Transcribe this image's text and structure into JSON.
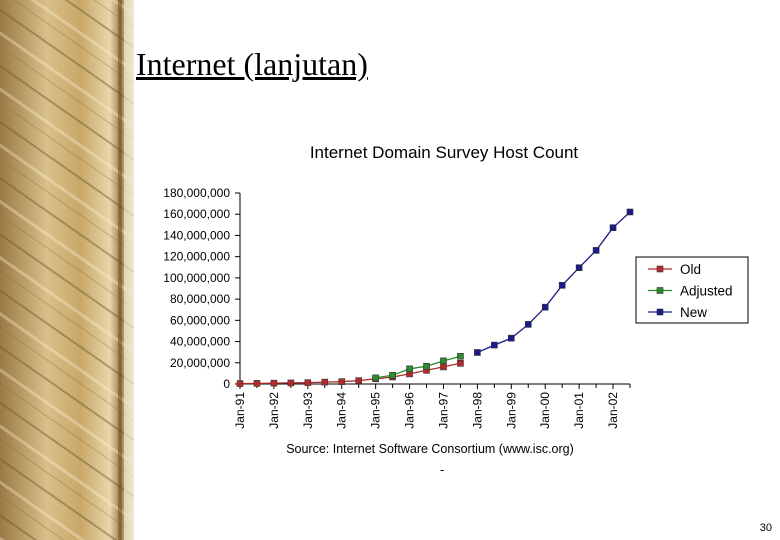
{
  "slide": {
    "title": "Internet (lanjutan)",
    "page_number": "30",
    "dash": "-"
  },
  "colors": {
    "old": "#b22a2a",
    "adjusted": "#2e8a2e",
    "new": "#1a1a8a"
  },
  "chart_data": {
    "type": "line",
    "title": "Internet Domain Survey Host Count",
    "source": "Source: Internet Software Consortium (www.isc.org)",
    "ylim": [
      0,
      180000000
    ],
    "yticks": [
      "180,000,000",
      "160,000,000",
      "140,000,000",
      "120,000,000",
      "100,000,000",
      "80,000,000",
      "60,000,000",
      "40,000,000",
      "20,000,000",
      "0"
    ],
    "ytick_values": [
      180000000,
      160000000,
      140000000,
      120000000,
      100000000,
      80000000,
      60000000,
      40000000,
      20000000,
      0
    ],
    "xticks": [
      "Jan-91",
      "Jan-92",
      "Jan-93",
      "Jan-94",
      "Jan-95",
      "Jan-96",
      "Jan-97",
      "Jan-98",
      "Jan-99",
      "Jan-00",
      "Jan-01",
      "Jan-02"
    ],
    "xtick_years": [
      1991,
      1992,
      1993,
      1994,
      1995,
      1996,
      1997,
      1998,
      1999,
      2000,
      2001,
      2002
    ],
    "xlim": [
      1991,
      2002.5
    ],
    "legend_position": "right",
    "series": [
      {
        "name": "Old",
        "color": "#b22a2a",
        "points": [
          {
            "x": 1991.0,
            "y": 400000
          },
          {
            "x": 1991.5,
            "y": 600000
          },
          {
            "x": 1992.0,
            "y": 800000
          },
          {
            "x": 1992.5,
            "y": 1000000
          },
          {
            "x": 1993.0,
            "y": 1300000
          },
          {
            "x": 1993.5,
            "y": 1800000
          },
          {
            "x": 1994.0,
            "y": 2200000
          },
          {
            "x": 1994.5,
            "y": 3200000
          },
          {
            "x": 1995.0,
            "y": 4900000
          },
          {
            "x": 1995.5,
            "y": 6600000
          },
          {
            "x": 1996.0,
            "y": 9500000
          },
          {
            "x": 1996.5,
            "y": 12900000
          },
          {
            "x": 1997.0,
            "y": 16100000
          },
          {
            "x": 1997.5,
            "y": 19500000
          }
        ]
      },
      {
        "name": "Adjusted",
        "color": "#2e8a2e",
        "points": [
          {
            "x": 1995.0,
            "y": 5800000
          },
          {
            "x": 1995.5,
            "y": 8200000
          },
          {
            "x": 1996.0,
            "y": 14300000
          },
          {
            "x": 1996.5,
            "y": 16700000
          },
          {
            "x": 1997.0,
            "y": 21800000
          },
          {
            "x": 1997.5,
            "y": 26100000
          }
        ]
      },
      {
        "name": "New",
        "color": "#1a1a8a",
        "points": [
          {
            "x": 1998.0,
            "y": 29700000
          },
          {
            "x": 1998.5,
            "y": 36700000
          },
          {
            "x": 1999.0,
            "y": 43200000
          },
          {
            "x": 1999.5,
            "y": 56200000
          },
          {
            "x": 2000.0,
            "y": 72400000
          },
          {
            "x": 2000.5,
            "y": 93000000
          },
          {
            "x": 2001.0,
            "y": 109600000
          },
          {
            "x": 2001.5,
            "y": 125900000
          },
          {
            "x": 2002.0,
            "y": 147300000
          },
          {
            "x": 2002.5,
            "y": 162100000
          }
        ]
      }
    ]
  }
}
